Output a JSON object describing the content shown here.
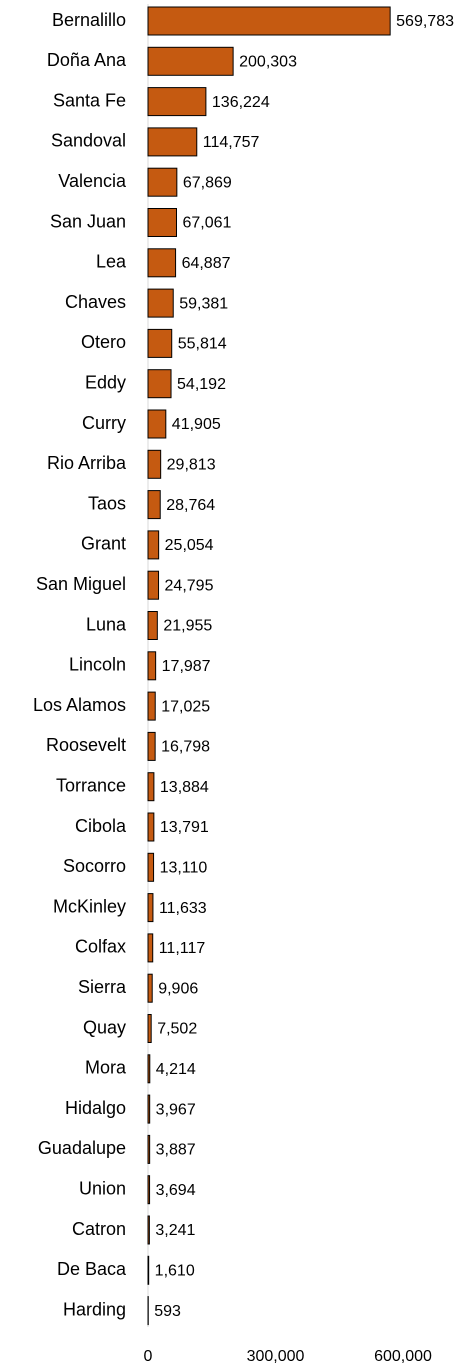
{
  "chart_data": {
    "type": "bar",
    "orientation": "horizontal",
    "categories": [
      "Bernalillo",
      "Doña Ana",
      "Santa Fe",
      "Sandoval",
      "Valencia",
      "San Juan",
      "Lea",
      "Chaves",
      "Otero",
      "Eddy",
      "Curry",
      "Rio Arriba",
      "Taos",
      "Grant",
      "San Miguel",
      "Luna",
      "Lincoln",
      "Los Alamos",
      "Roosevelt",
      "Torrance",
      "Cibola",
      "Socorro",
      "McKinley",
      "Colfax",
      "Sierra",
      "Quay",
      "Mora",
      "Hidalgo",
      "Guadalupe",
      "Union",
      "Catron",
      "De Baca",
      "Harding"
    ],
    "values": [
      569783,
      200303,
      136224,
      114757,
      67869,
      67061,
      64887,
      59381,
      55814,
      54192,
      41905,
      29813,
      28764,
      25054,
      24795,
      21955,
      17987,
      17025,
      16798,
      13884,
      13791,
      13110,
      11633,
      11117,
      9906,
      7502,
      4214,
      3967,
      3887,
      3694,
      3241,
      1610,
      593
    ],
    "value_labels": [
      "569,783",
      "200,303",
      "136,224",
      "114,757",
      "67,869",
      "67,061",
      "64,887",
      "59,381",
      "55,814",
      "54,192",
      "41,905",
      "29,813",
      "28,764",
      "25,054",
      "24,795",
      "21,955",
      "17,987",
      "17,025",
      "16,798",
      "13,884",
      "13,791",
      "13,110",
      "11,633",
      "11,117",
      "9,906",
      "7,502",
      "4,214",
      "3,967",
      "3,887",
      "3,694",
      "3,241",
      "1,610",
      "593"
    ],
    "color": "#c55a11",
    "xlim": [
      0,
      600000
    ],
    "xticks": [
      0,
      {
        "value": 300000,
        "label": "300,000"
      },
      {
        "value": 600000,
        "label": "600,000"
      }
    ]
  }
}
